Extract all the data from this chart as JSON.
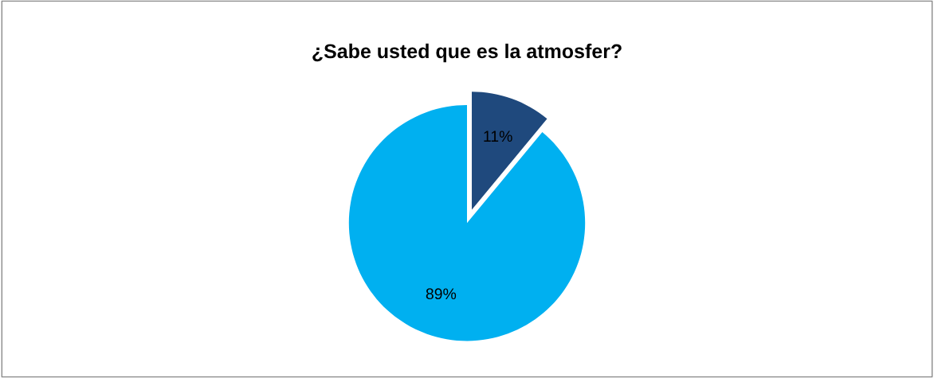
{
  "chart_data": {
    "type": "pie",
    "title": "¿Sabe usted que es la atmosfer?",
    "categories": [
      null,
      null
    ],
    "values": [
      11,
      89
    ],
    "colors": [
      "#1f497d",
      "#00b0f0"
    ],
    "value_labels": [
      "11%",
      "89%"
    ]
  }
}
